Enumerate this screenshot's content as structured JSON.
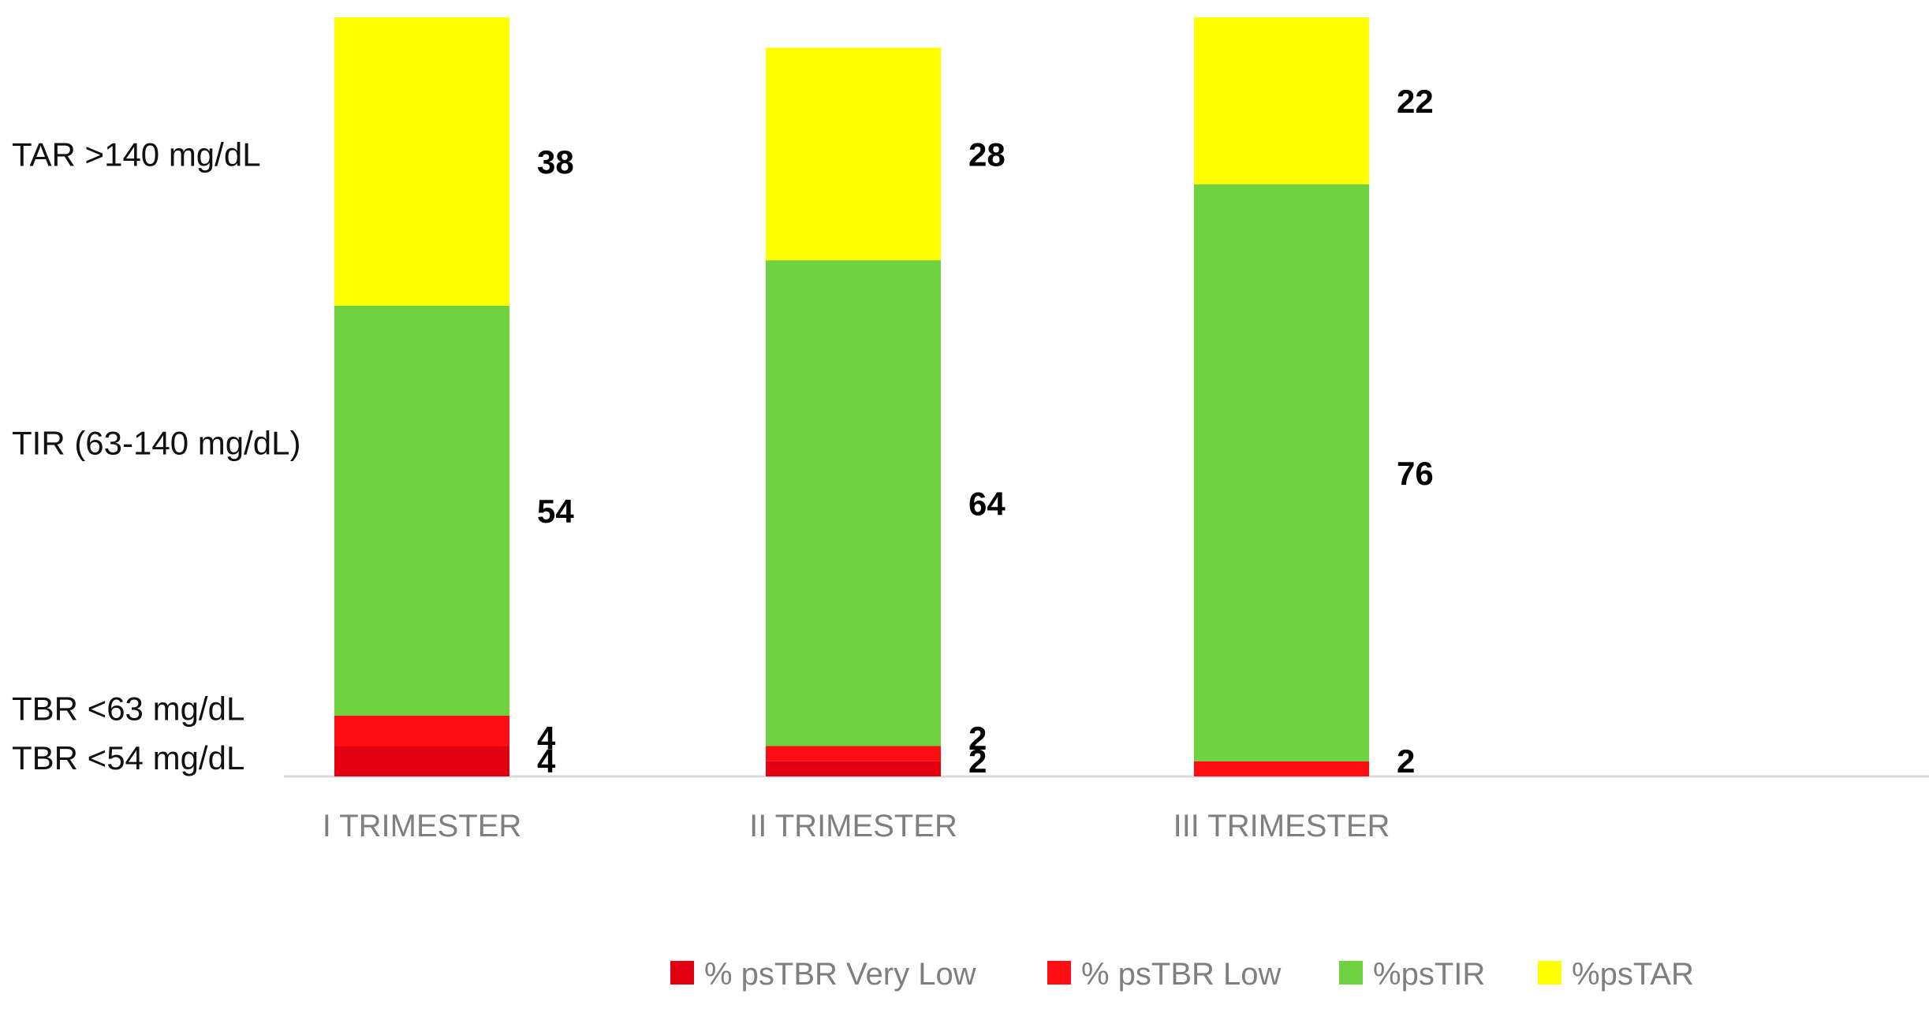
{
  "chart_data": {
    "type": "bar",
    "stacked": true,
    "categories": [
      "I TRIMESTER",
      "II TRIMESTER",
      "III TRIMESTER"
    ],
    "series": [
      {
        "name": "% psTBR Very Low",
        "color": "#e0000f",
        "values": [
          4,
          2,
          0
        ]
      },
      {
        "name": "% psTBR Low",
        "color": "#ff0d12",
        "values": [
          4,
          2,
          2
        ]
      },
      {
        "name": "%psTIR",
        "color": "#6fd241",
        "values": [
          54,
          64,
          76
        ]
      },
      {
        "name": "%psTAR",
        "color": "#ffff00",
        "values": [
          38,
          28,
          22
        ]
      }
    ],
    "data_labels": [
      [
        "4",
        "4",
        "54",
        "38"
      ],
      [
        "2",
        "2",
        "64",
        "28"
      ],
      [
        "",
        "2",
        "76",
        "22"
      ]
    ],
    "row_labels": [
      {
        "text": "TAR >140 mg/dL",
        "value": 82
      },
      {
        "text": "TIR (63-140 mg/dL)",
        "value": 44
      },
      {
        "text": "TBR <63 mg/dL",
        "value": 9
      },
      {
        "text": "TBR <54 mg/dL",
        "value": 2.5
      }
    ],
    "ylim": [
      0,
      100
    ],
    "legend_position": "bottom",
    "grid": false
  }
}
